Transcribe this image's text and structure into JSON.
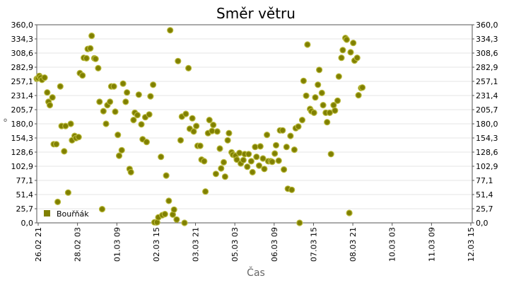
{
  "chart_data": {
    "type": "scatter",
    "title": "Směr větru",
    "xlabel": "Čas",
    "ylabel": "°",
    "ylim": [
      0,
      360
    ],
    "y_ticks": [
      "0,0",
      "25,7",
      "51,4",
      "77,1",
      "102,9",
      "128,6",
      "154,3",
      "180,0",
      "205,7",
      "231,4",
      "257,1",
      "282,9",
      "308,6",
      "334,3",
      "360,0"
    ],
    "x_ticks": [
      "26.02 21",
      "28.02 03",
      "01.03 09",
      "02.03 15",
      "03.03 21",
      "05.03 03",
      "06.03 09",
      "07.03 15",
      "08.03 21",
      "10.03 03",
      "11.03 09",
      "12.03 15"
    ],
    "x_range": [
      "26.02 21:00",
      "12.03 18:00"
    ],
    "grid": true,
    "legend_position": "bottom-left",
    "series": [
      {
        "name": "Bouřňák",
        "color": "#808000",
        "points": [
          [
            "26.02 21:00",
            262
          ],
          [
            "26.02 22:00",
            263
          ],
          [
            "26.02 23:00",
            267
          ],
          [
            "27.02 00:00",
            264
          ],
          [
            "27.02 01:00",
            260
          ],
          [
            "27.02 03:00",
            264
          ],
          [
            "27.02 05:00",
            237
          ],
          [
            "27.02 06:00",
            220
          ],
          [
            "27.02 07:00",
            214
          ],
          [
            "27.02 09:00",
            228
          ],
          [
            "27.02 10:00",
            143
          ],
          [
            "27.02 12:00",
            143
          ],
          [
            "27.02 13:00",
            38
          ],
          [
            "27.02 15:00",
            248
          ],
          [
            "27.02 16:00",
            176
          ],
          [
            "27.02 18:00",
            130
          ],
          [
            "27.02 19:00",
            176
          ],
          [
            "27.02 21:00",
            55
          ],
          [
            "27.02 23:00",
            180
          ],
          [
            "28.02 00:00",
            150
          ],
          [
            "28.02 02:00",
            158
          ],
          [
            "28.02 03:00",
            154
          ],
          [
            "28.02 05:00",
            156
          ],
          [
            "28.02 06:00",
            272
          ],
          [
            "28.02 08:00",
            268
          ],
          [
            "28.02 09:00",
            300
          ],
          [
            "28.02 11:00",
            299
          ],
          [
            "28.02 12:00",
            316
          ],
          [
            "28.02 14:00",
            317
          ],
          [
            "28.02 15:00",
            340
          ],
          [
            "28.02 17:00",
            299
          ],
          [
            "28.02 18:00",
            298
          ],
          [
            "28.02 20:00",
            281
          ],
          [
            "28.02 21:00",
            220
          ],
          [
            "28.02 23:00",
            25
          ],
          [
            "01.03 00:00",
            203
          ],
          [
            "01.03 02:00",
            180
          ],
          [
            "01.03 03:00",
            214
          ],
          [
            "01.03 05:00",
            220
          ],
          [
            "01.03 06:00",
            248
          ],
          [
            "01.03 08:00",
            248
          ],
          [
            "01.03 09:00",
            202
          ],
          [
            "01.03 11:00",
            160
          ],
          [
            "01.03 12:00",
            122
          ],
          [
            "01.03 14:00",
            132
          ],
          [
            "01.03 15:00",
            253
          ],
          [
            "01.03 17:00",
            220
          ],
          [
            "01.03 18:00",
            237
          ],
          [
            "01.03 20:00",
            98
          ],
          [
            "01.03 21:00",
            92
          ],
          [
            "01.03 23:00",
            187
          ],
          [
            "02.03 00:00",
            200
          ],
          [
            "02.03 02:00",
            196
          ],
          [
            "02.03 03:00",
            233
          ],
          [
            "02.03 05:00",
            179
          ],
          [
            "02.03 06:00",
            152
          ],
          [
            "02.03 08:00",
            192
          ],
          [
            "02.03 09:00",
            147
          ],
          [
            "02.03 11:00",
            197
          ],
          [
            "02.03 12:00",
            230
          ],
          [
            "02.03 14:00",
            251
          ],
          [
            "02.03 15:00",
            1
          ],
          [
            "02.03 17:00",
            1
          ],
          [
            "02.03 18:00",
            10
          ],
          [
            "02.03 20:00",
            120
          ],
          [
            "02.03 21:00",
            14
          ],
          [
            "02.03 23:00",
            16
          ],
          [
            "03.03 00:00",
            86
          ],
          [
            "03.03 02:00",
            40
          ],
          [
            "03.03 03:00",
            350
          ],
          [
            "03.03 05:00",
            15
          ],
          [
            "03.03 06:00",
            24
          ],
          [
            "03.03 08:00",
            6
          ],
          [
            "03.03 09:00",
            294
          ],
          [
            "03.03 11:00",
            150
          ],
          [
            "03.03 12:00",
            193
          ],
          [
            "03.03 14:00",
            0
          ],
          [
            "03.03 15:00",
            198
          ],
          [
            "03.03 17:00",
            281
          ],
          [
            "03.03 18:00",
            171
          ],
          [
            "03.03 20:00",
            190
          ],
          [
            "03.03 21:00",
            166
          ],
          [
            "03.03 23:00",
            176
          ],
          [
            "04.03 00:00",
            140
          ],
          [
            "04.03 02:00",
            140
          ],
          [
            "04.03 03:00",
            115
          ],
          [
            "04.03 05:00",
            112
          ],
          [
            "04.03 06:00",
            57
          ],
          [
            "04.03 08:00",
            163
          ],
          [
            "04.03 09:00",
            187
          ],
          [
            "04.03 11:00",
            167
          ],
          [
            "04.03 12:00",
            178
          ],
          [
            "04.03 14:00",
            89
          ],
          [
            "04.03 15:00",
            166
          ],
          [
            "04.03 17:00",
            135
          ],
          [
            "04.03 18:00",
            99
          ],
          [
            "04.03 20:00",
            110
          ],
          [
            "04.03 21:00",
            84
          ],
          [
            "04.03 23:00",
            150
          ],
          [
            "05.03 00:00",
            163
          ],
          [
            "05.03 02:00",
            128
          ],
          [
            "05.03 03:00",
            124
          ],
          [
            "05.03 05:00",
            122
          ],
          [
            "05.03 06:00",
            115
          ],
          [
            "05.03 08:00",
            127
          ],
          [
            "05.03 09:00",
            108
          ],
          [
            "05.03 11:00",
            114
          ],
          [
            "05.03 12:00",
            125
          ],
          [
            "05.03 14:00",
            102
          ],
          [
            "05.03 15:00",
            125
          ],
          [
            "05.03 17:00",
            112
          ],
          [
            "05.03 18:00",
            92
          ],
          [
            "05.03 20:00",
            138
          ],
          [
            "05.03 21:00",
            120
          ],
          [
            "05.03 23:00",
            104
          ],
          [
            "06.03 00:00",
            139
          ],
          [
            "06.03 02:00",
            117
          ],
          [
            "06.03 03:00",
            98
          ],
          [
            "06.03 05:00",
            160
          ],
          [
            "06.03 06:00",
            112
          ],
          [
            "06.03 08:00",
            112
          ],
          [
            "06.03 09:00",
            111
          ],
          [
            "06.03 11:00",
            126
          ],
          [
            "06.03 12:00",
            141
          ],
          [
            "06.03 14:00",
            113
          ],
          [
            "06.03 15:00",
            168
          ],
          [
            "06.03 17:00",
            168
          ],
          [
            "06.03 18:00",
            97
          ],
          [
            "06.03 20:00",
            138
          ],
          [
            "06.03 21:00",
            62
          ],
          [
            "06.03 23:00",
            158
          ],
          [
            "07.03 00:00",
            60
          ],
          [
            "07.03 02:00",
            133
          ],
          [
            "07.03 03:00",
            172
          ],
          [
            "07.03 05:00",
            175
          ],
          [
            "07.03 06:00",
            0
          ],
          [
            "07.03 08:00",
            187
          ],
          [
            "07.03 09:00",
            258
          ],
          [
            "07.03 11:00",
            231
          ],
          [
            "07.03 12:00",
            324
          ],
          [
            "07.03 14:00",
            207
          ],
          [
            "07.03 15:00",
            203
          ],
          [
            "07.03 17:00",
            200
          ],
          [
            "07.03 18:00",
            228
          ],
          [
            "07.03 20:00",
            251
          ],
          [
            "07.03 21:00",
            278
          ],
          [
            "07.03 23:00",
            236
          ],
          [
            "08.03 00:00",
            214
          ],
          [
            "08.03 02:00",
            200
          ],
          [
            "08.03 03:00",
            183
          ],
          [
            "08.03 05:00",
            200
          ],
          [
            "08.03 06:00",
            125
          ],
          [
            "08.03 08:00",
            214
          ],
          [
            "08.03 09:00",
            204
          ],
          [
            "08.03 11:00",
            222
          ],
          [
            "08.03 12:00",
            266
          ],
          [
            "08.03 14:00",
            300
          ],
          [
            "08.03 15:00",
            314
          ],
          [
            "08.03 17:00",
            336
          ],
          [
            "08.03 18:00",
            333
          ],
          [
            "08.03 20:00",
            18
          ],
          [
            "08.03 21:00",
            310
          ],
          [
            "08.03 23:00",
            327
          ],
          [
            "09.03 00:00",
            295
          ],
          [
            "09.03 02:00",
            300
          ],
          [
            "09.03 03:00",
            232
          ],
          [
            "09.03 05:00",
            245
          ],
          [
            "09.03 06:00",
            246
          ]
        ]
      }
    ]
  }
}
